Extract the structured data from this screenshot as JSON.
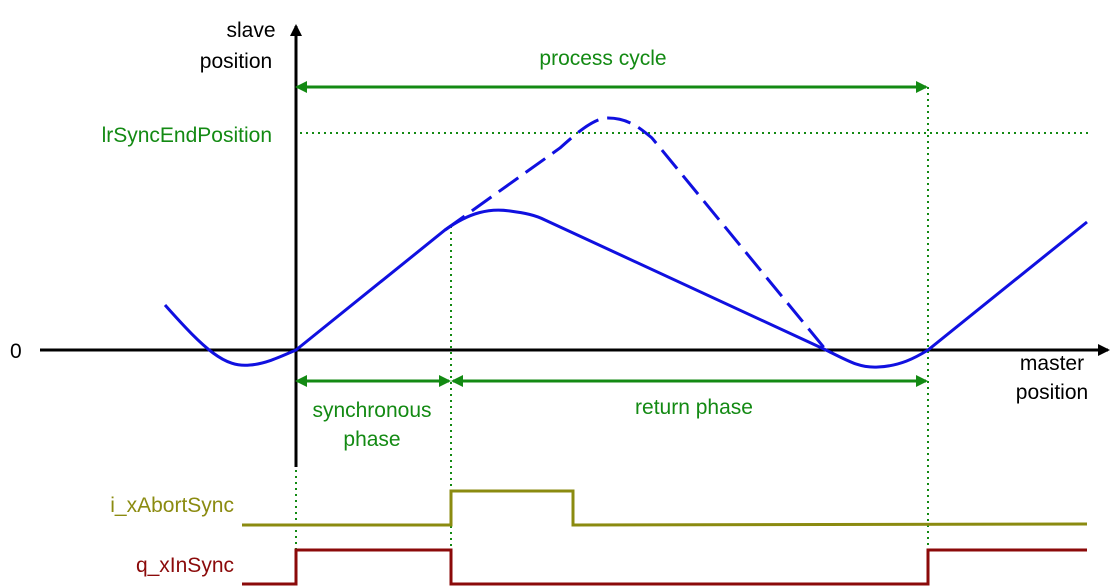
{
  "axes": {
    "y_label_line1": "slave",
    "y_label_line2": "position",
    "x_label_line1": "master",
    "x_label_line2": "position",
    "zero_label": "0"
  },
  "levels": {
    "sync_end_label": "lrSyncEndPosition"
  },
  "phases": {
    "process_cycle": "process cycle",
    "synchronous_line1": "synchronous",
    "synchronous_line2": "phase",
    "return_phase": "return phase"
  },
  "signals": {
    "abort_sync": "i_xAbortSync",
    "in_sync": "q_xInSync"
  },
  "colors": {
    "axis": "#000000",
    "curve": "#1010e0",
    "annotation": "#138a13",
    "abort_signal": "#8b8b10",
    "insync_signal": "#8b0a0a"
  }
}
